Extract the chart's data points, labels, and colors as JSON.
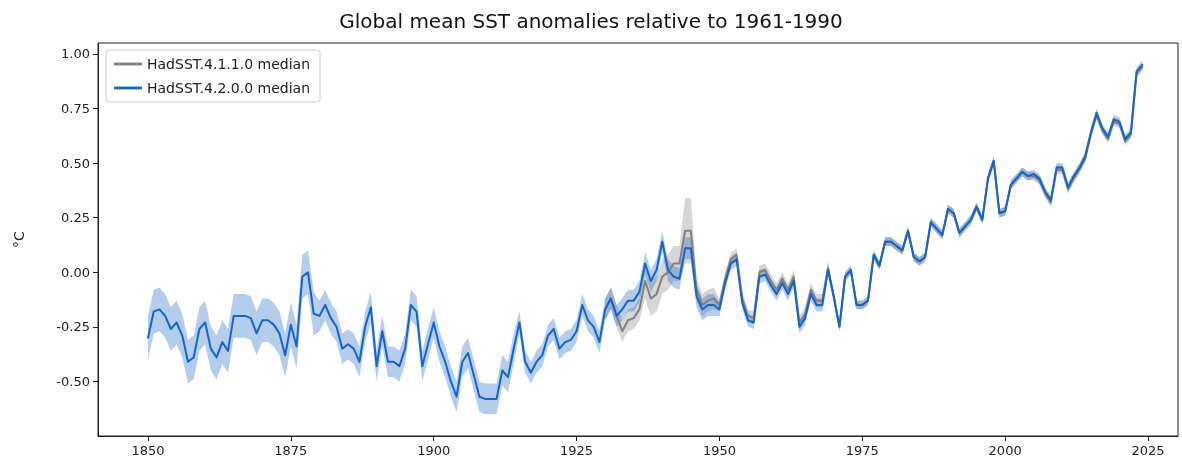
{
  "chart_data": {
    "type": "line",
    "title": "Global mean SST anomalies relative to 1961-1990",
    "ylabel": "°C",
    "xlim": [
      1841.25,
      2030.25
    ],
    "xticks": [
      1850,
      1875,
      1900,
      1925,
      1950,
      1975,
      2000,
      2025
    ],
    "ylim": [
      -0.75,
      1.05
    ],
    "yticks": [
      {
        "value": -0.5,
        "label": "-0.50"
      },
      {
        "value": -0.25,
        "label": "-0.25"
      },
      {
        "value": 0,
        "label": "0.00"
      },
      {
        "value": 0.25,
        "label": "0.25"
      },
      {
        "value": 0.5,
        "label": "0.50"
      },
      {
        "value": 0.75,
        "label": "0.75"
      },
      {
        "value": 1,
        "label": "1.00"
      }
    ],
    "legend": "top left",
    "x": [
      1850,
      1851,
      1852,
      1853,
      1854,
      1855,
      1856,
      1857,
      1858,
      1859,
      1860,
      1861,
      1862,
      1863,
      1864,
      1865,
      1866,
      1867,
      1868,
      1869,
      1870,
      1871,
      1872,
      1873,
      1874,
      1875,
      1876,
      1877,
      1878,
      1879,
      1880,
      1881,
      1882,
      1883,
      1884,
      1885,
      1886,
      1887,
      1888,
      1889,
      1890,
      1891,
      1892,
      1893,
      1894,
      1895,
      1896,
      1897,
      1898,
      1899,
      1900,
      1901,
      1902,
      1903,
      1904,
      1905,
      1906,
      1907,
      1908,
      1909,
      1910,
      1911,
      1912,
      1913,
      1914,
      1915,
      1916,
      1917,
      1918,
      1919,
      1920,
      1921,
      1922,
      1923,
      1924,
      1925,
      1926,
      1927,
      1928,
      1929,
      1930,
      1931,
      1932,
      1933,
      1934,
      1935,
      1936,
      1937,
      1938,
      1939,
      1940,
      1941,
      1942,
      1943,
      1944,
      1945,
      1946,
      1947,
      1948,
      1949,
      1950,
      1951,
      1952,
      1953,
      1954,
      1955,
      1956,
      1957,
      1958,
      1959,
      1960,
      1961,
      1962,
      1963,
      1964,
      1965,
      1966,
      1967,
      1968,
      1969,
      1970,
      1971,
      1972,
      1973,
      1974,
      1975,
      1976,
      1977,
      1978,
      1979,
      1980,
      1981,
      1982,
      1983,
      1984,
      1985,
      1986,
      1987,
      1988,
      1989,
      1990,
      1991,
      1992,
      1993,
      1994,
      1995,
      1996,
      1997,
      1998,
      1999,
      2000,
      2001,
      2002,
      2003,
      2004,
      2005,
      2006,
      2007,
      2008,
      2009,
      2010,
      2011,
      2012,
      2013,
      2014,
      2015,
      2016,
      2017,
      2018,
      2019,
      2020,
      2021,
      2022,
      2023,
      2024
    ],
    "series": [
      {
        "name": "HadSST.4.1.1.0 median",
        "color": "#808080",
        "x": [
          1930,
          1931,
          1932,
          1933,
          1934,
          1935,
          1936,
          1937,
          1938,
          1939,
          1940,
          1941,
          1942,
          1943,
          1944,
          1945,
          1946,
          1947,
          1948,
          1949,
          1950,
          1951,
          1952,
          1953,
          1954,
          1955,
          1956,
          1957,
          1958,
          1959,
          1960,
          1961,
          1962,
          1963,
          1964,
          1965,
          1966,
          1967,
          1968,
          1969,
          1970,
          1971,
          1972,
          1973,
          1974,
          1975,
          1976,
          1977,
          1978,
          1979,
          1980,
          1981,
          1982,
          1983,
          1984,
          1985,
          1986,
          1987,
          1988,
          1989,
          1990,
          1991,
          1992,
          1993,
          1994,
          1995,
          1996,
          1997,
          1998,
          1999,
          2000,
          2001,
          2002,
          2003,
          2004,
          2005,
          2006,
          2007,
          2008,
          2009,
          2010,
          2011,
          2012,
          2013,
          2014,
          2015,
          2016,
          2017,
          2018,
          2019,
          2020,
          2021,
          2022,
          2023,
          2024
        ],
        "values": [
          -0.17,
          -0.12,
          -0.2,
          -0.27,
          -0.22,
          -0.21,
          -0.17,
          -0.04,
          -0.12,
          -0.1,
          -0.02,
          0.0,
          0.04,
          0.04,
          0.19,
          0.19,
          -0.08,
          -0.15,
          -0.13,
          -0.12,
          -0.15,
          -0.03,
          0.06,
          0.08,
          -0.12,
          -0.2,
          -0.21,
          0.0,
          0.01,
          -0.04,
          -0.08,
          -0.03,
          -0.08,
          -0.02,
          -0.23,
          -0.19,
          -0.08,
          -0.13,
          -0.13,
          0.02,
          -0.11,
          -0.25,
          -0.02,
          0.01,
          -0.15,
          -0.15,
          -0.13,
          0.08,
          0.03,
          0.14,
          0.14,
          0.12,
          0.1,
          0.19,
          0.07,
          0.05,
          0.07,
          0.23,
          0.2,
          0.17,
          0.29,
          0.27,
          0.18,
          0.21,
          0.24,
          0.3,
          0.24,
          0.43,
          0.51,
          0.27,
          0.28,
          0.4,
          0.43,
          0.46,
          0.44,
          0.44,
          0.42,
          0.36,
          0.32,
          0.47,
          0.47,
          0.38,
          0.43,
          0.47,
          0.52,
          0.63,
          0.72,
          0.65,
          0.61,
          0.69,
          0.68,
          0.6,
          0.63,
          0.91,
          0.94
        ],
        "lower": [
          -0.22,
          -0.17,
          -0.25,
          -0.32,
          -0.27,
          -0.26,
          -0.22,
          -0.12,
          -0.2,
          -0.18,
          -0.1,
          -0.08,
          -0.04,
          -0.04,
          0.04,
          0.04,
          -0.13,
          -0.2,
          -0.18,
          -0.17,
          -0.18,
          -0.06,
          0.03,
          0.05,
          -0.15,
          -0.23,
          -0.24,
          -0.03,
          -0.02,
          -0.07,
          -0.11,
          -0.06,
          -0.11,
          -0.05,
          -0.26,
          -0.22,
          -0.11,
          -0.16,
          -0.16,
          -0.01,
          -0.13,
          -0.27,
          -0.04,
          -0.01,
          -0.17,
          -0.17,
          -0.15,
          0.06,
          0.01,
          0.12,
          0.12,
          0.1,
          0.08,
          0.17,
          0.05,
          0.03,
          0.05,
          0.21,
          0.18,
          0.15,
          0.27,
          0.25,
          0.16,
          0.19,
          0.22,
          0.28,
          0.22,
          0.41,
          0.49,
          0.25,
          0.26,
          0.38,
          0.41,
          0.44,
          0.42,
          0.42,
          0.4,
          0.34,
          0.3,
          0.45,
          0.45,
          0.36,
          0.41,
          0.45,
          0.5,
          0.61,
          0.7,
          0.63,
          0.59,
          0.67,
          0.66,
          0.58,
          0.61,
          0.89,
          0.92
        ],
        "upper": [
          -0.12,
          -0.07,
          -0.15,
          -0.22,
          -0.17,
          -0.16,
          -0.12,
          0.04,
          -0.04,
          -0.02,
          0.06,
          0.08,
          0.12,
          0.12,
          0.34,
          0.34,
          -0.03,
          -0.1,
          -0.08,
          -0.07,
          -0.12,
          0.0,
          0.09,
          0.11,
          -0.09,
          -0.17,
          -0.18,
          0.03,
          0.04,
          -0.01,
          -0.05,
          0.0,
          -0.05,
          0.01,
          -0.2,
          -0.16,
          -0.05,
          -0.1,
          -0.1,
          0.05,
          -0.09,
          -0.23,
          0.0,
          0.03,
          -0.13,
          -0.13,
          -0.11,
          0.1,
          0.05,
          0.16,
          0.16,
          0.14,
          0.12,
          0.21,
          0.09,
          0.07,
          0.09,
          0.25,
          0.22,
          0.19,
          0.31,
          0.29,
          0.2,
          0.23,
          0.26,
          0.32,
          0.26,
          0.45,
          0.53,
          0.29,
          0.3,
          0.42,
          0.45,
          0.48,
          0.46,
          0.46,
          0.44,
          0.38,
          0.34,
          0.49,
          0.49,
          0.4,
          0.45,
          0.49,
          0.54,
          0.65,
          0.74,
          0.67,
          0.63,
          0.71,
          0.7,
          0.62,
          0.65,
          0.93,
          0.96
        ]
      },
      {
        "name": "HadSST.4.2.0.0 median",
        "color": "#1565c8",
        "values": [
          -0.3,
          -0.18,
          -0.17,
          -0.2,
          -0.26,
          -0.23,
          -0.29,
          -0.41,
          -0.39,
          -0.26,
          -0.23,
          -0.35,
          -0.39,
          -0.32,
          -0.36,
          -0.2,
          -0.2,
          -0.2,
          -0.21,
          -0.28,
          -0.22,
          -0.22,
          -0.24,
          -0.28,
          -0.38,
          -0.24,
          -0.34,
          -0.02,
          0.0,
          -0.19,
          -0.2,
          -0.15,
          -0.21,
          -0.25,
          -0.35,
          -0.33,
          -0.35,
          -0.41,
          -0.25,
          -0.16,
          -0.43,
          -0.27,
          -0.41,
          -0.41,
          -0.43,
          -0.35,
          -0.15,
          -0.18,
          -0.43,
          -0.33,
          -0.23,
          -0.34,
          -0.41,
          -0.5,
          -0.57,
          -0.41,
          -0.37,
          -0.47,
          -0.57,
          -0.58,
          -0.58,
          -0.58,
          -0.45,
          -0.48,
          -0.35,
          -0.23,
          -0.41,
          -0.46,
          -0.41,
          -0.38,
          -0.29,
          -0.26,
          -0.35,
          -0.32,
          -0.31,
          -0.27,
          -0.15,
          -0.22,
          -0.25,
          -0.32,
          -0.17,
          -0.12,
          -0.2,
          -0.17,
          -0.13,
          -0.13,
          -0.09,
          0.04,
          -0.04,
          0.01,
          0.14,
          0.01,
          -0.02,
          -0.03,
          0.11,
          0.11,
          -0.11,
          -0.17,
          -0.15,
          -0.15,
          -0.17,
          -0.05,
          0.04,
          0.06,
          -0.14,
          -0.22,
          -0.23,
          -0.02,
          -0.01,
          -0.06,
          -0.1,
          -0.05,
          -0.1,
          -0.04,
          -0.25,
          -0.21,
          -0.1,
          -0.15,
          -0.15,
          0.01,
          -0.11,
          -0.25,
          -0.02,
          0.01,
          -0.15,
          -0.15,
          -0.13,
          0.08,
          0.03,
          0.14,
          0.14,
          0.12,
          0.1,
          0.19,
          0.07,
          0.05,
          0.07,
          0.23,
          0.2,
          0.17,
          0.29,
          0.27,
          0.18,
          0.21,
          0.24,
          0.3,
          0.24,
          0.43,
          0.51,
          0.27,
          0.28,
          0.4,
          0.43,
          0.46,
          0.44,
          0.45,
          0.43,
          0.37,
          0.33,
          0.48,
          0.48,
          0.39,
          0.44,
          0.48,
          0.53,
          0.64,
          0.73,
          0.66,
          0.62,
          0.7,
          0.69,
          0.61,
          0.64,
          0.92,
          0.95
        ],
        "lower": [
          -0.4,
          -0.28,
          -0.27,
          -0.3,
          -0.36,
          -0.33,
          -0.39,
          -0.51,
          -0.49,
          -0.36,
          -0.33,
          -0.45,
          -0.49,
          -0.42,
          -0.46,
          -0.3,
          -0.3,
          -0.3,
          -0.31,
          -0.38,
          -0.32,
          -0.32,
          -0.34,
          -0.38,
          -0.48,
          -0.34,
          -0.44,
          -0.12,
          -0.1,
          -0.29,
          -0.27,
          -0.22,
          -0.28,
          -0.32,
          -0.42,
          -0.4,
          -0.42,
          -0.48,
          -0.32,
          -0.23,
          -0.5,
          -0.34,
          -0.48,
          -0.48,
          -0.5,
          -0.42,
          -0.22,
          -0.25,
          -0.5,
          -0.4,
          -0.3,
          -0.41,
          -0.48,
          -0.57,
          -0.64,
          -0.48,
          -0.44,
          -0.54,
          -0.64,
          -0.65,
          -0.65,
          -0.65,
          -0.52,
          -0.55,
          -0.42,
          -0.28,
          -0.46,
          -0.51,
          -0.46,
          -0.43,
          -0.34,
          -0.31,
          -0.4,
          -0.37,
          -0.36,
          -0.32,
          -0.2,
          -0.27,
          -0.3,
          -0.37,
          -0.22,
          -0.17,
          -0.25,
          -0.22,
          -0.18,
          -0.18,
          -0.14,
          -0.01,
          -0.09,
          -0.04,
          0.09,
          -0.04,
          -0.07,
          -0.08,
          0.06,
          0.06,
          -0.16,
          -0.22,
          -0.2,
          -0.2,
          -0.2,
          -0.08,
          0.01,
          0.03,
          -0.17,
          -0.25,
          -0.26,
          -0.05,
          -0.04,
          -0.09,
          -0.13,
          -0.08,
          -0.13,
          -0.07,
          -0.28,
          -0.24,
          -0.13,
          -0.18,
          -0.18,
          -0.02,
          -0.13,
          -0.27,
          -0.04,
          -0.01,
          -0.17,
          -0.17,
          -0.15,
          0.06,
          0.01,
          0.12,
          0.12,
          0.1,
          0.08,
          0.17,
          0.05,
          0.03,
          0.05,
          0.21,
          0.18,
          0.15,
          0.27,
          0.25,
          0.16,
          0.19,
          0.22,
          0.28,
          0.22,
          0.41,
          0.49,
          0.25,
          0.26,
          0.38,
          0.41,
          0.44,
          0.42,
          0.43,
          0.41,
          0.35,
          0.31,
          0.46,
          0.46,
          0.37,
          0.42,
          0.46,
          0.51,
          0.62,
          0.71,
          0.64,
          0.6,
          0.68,
          0.67,
          0.59,
          0.62,
          0.9,
          0.93
        ],
        "upper": [
          -0.2,
          -0.08,
          -0.07,
          -0.1,
          -0.16,
          -0.13,
          -0.19,
          -0.31,
          -0.29,
          -0.16,
          -0.13,
          -0.25,
          -0.29,
          -0.22,
          -0.26,
          -0.1,
          -0.1,
          -0.1,
          -0.11,
          -0.18,
          -0.12,
          -0.12,
          -0.14,
          -0.18,
          -0.28,
          -0.14,
          -0.24,
          0.08,
          0.1,
          -0.09,
          -0.13,
          -0.08,
          -0.14,
          -0.18,
          -0.28,
          -0.26,
          -0.28,
          -0.34,
          -0.18,
          -0.09,
          -0.36,
          -0.2,
          -0.34,
          -0.34,
          -0.36,
          -0.28,
          -0.08,
          -0.11,
          -0.36,
          -0.26,
          -0.16,
          -0.27,
          -0.34,
          -0.43,
          -0.5,
          -0.34,
          -0.3,
          -0.4,
          -0.5,
          -0.51,
          -0.51,
          -0.51,
          -0.38,
          -0.41,
          -0.28,
          -0.18,
          -0.36,
          -0.41,
          -0.36,
          -0.33,
          -0.24,
          -0.21,
          -0.3,
          -0.27,
          -0.26,
          -0.22,
          -0.1,
          -0.17,
          -0.2,
          -0.27,
          -0.12,
          -0.07,
          -0.15,
          -0.12,
          -0.08,
          -0.08,
          -0.04,
          0.09,
          0.01,
          0.06,
          0.19,
          0.06,
          0.03,
          0.02,
          0.16,
          0.16,
          -0.06,
          -0.12,
          -0.1,
          -0.1,
          -0.14,
          -0.02,
          0.07,
          0.09,
          -0.11,
          -0.19,
          -0.2,
          0.01,
          0.02,
          -0.03,
          -0.07,
          -0.02,
          -0.07,
          -0.01,
          -0.22,
          -0.18,
          -0.07,
          -0.12,
          -0.12,
          0.04,
          -0.09,
          -0.23,
          0.0,
          0.03,
          -0.13,
          -0.13,
          -0.11,
          0.1,
          0.05,
          0.16,
          0.16,
          0.14,
          0.12,
          0.21,
          0.09,
          0.07,
          0.09,
          0.25,
          0.22,
          0.19,
          0.31,
          0.29,
          0.2,
          0.23,
          0.26,
          0.32,
          0.26,
          0.45,
          0.53,
          0.29,
          0.3,
          0.42,
          0.45,
          0.48,
          0.46,
          0.47,
          0.45,
          0.39,
          0.35,
          0.5,
          0.5,
          0.41,
          0.46,
          0.5,
          0.55,
          0.66,
          0.75,
          0.68,
          0.64,
          0.72,
          0.71,
          0.63,
          0.66,
          0.94,
          0.97
        ]
      }
    ]
  }
}
